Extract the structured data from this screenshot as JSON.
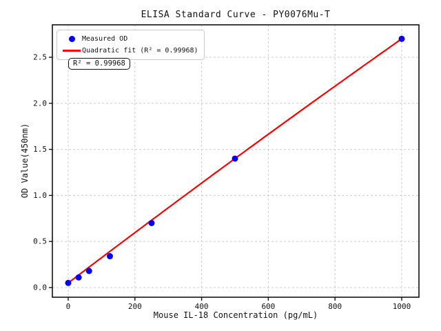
{
  "figure": {
    "title": "ELISA Standard Curve - PY0076Mu-T",
    "xlabel": "Mouse IL-18 Concentration (pg/mL)",
    "ylabel": "OD Value(450nm)",
    "annotation": "R² = 0.99968",
    "legend": [
      {
        "marker": "dot",
        "color": "#0000ff",
        "label": "Measured OD"
      },
      {
        "marker": "line",
        "color": "#ff0000",
        "label": "Quadratic fit (R² = 0.99968)"
      }
    ]
  },
  "chart_data": {
    "type": "scatter",
    "title": "ELISA Standard Curve - PY0076Mu-T",
    "xlabel": "Mouse IL-18 Concentration (pg/mL)",
    "ylabel": "OD Value(450nm)",
    "x": [
      0,
      31.25,
      62.5,
      125,
      250,
      500,
      1000
    ],
    "series": [
      {
        "name": "Measured OD",
        "type": "scatter",
        "color": "#0000ff",
        "values": [
          0.05,
          0.11,
          0.18,
          0.34,
          0.7,
          1.4,
          2.7
        ]
      },
      {
        "name": "Quadratic fit (R² = 0.99968)",
        "type": "line",
        "color": "#ff0000",
        "fit_coefficients": {
          "a": 0.05,
          "b": 0.00275,
          "c": -1e-07
        },
        "x_range": [
          0,
          1000
        ]
      }
    ],
    "r_squared": 0.99968,
    "x_ticks": [
      "0",
      "200",
      "400",
      "600",
      "800",
      "1000"
    ],
    "y_ticks": [
      "0.0",
      "0.5",
      "1.0",
      "1.5",
      "2.0",
      "2.5"
    ],
    "xlim": [
      -47.5,
      1051.7
    ],
    "ylim": [
      -0.105,
      2.852
    ],
    "grid": true,
    "legend_position": "upper-left",
    "colors": {
      "marker": "#0000ff",
      "fit_line": "#ff0000",
      "grid": "#cccccc",
      "axes": "#111111"
    }
  }
}
